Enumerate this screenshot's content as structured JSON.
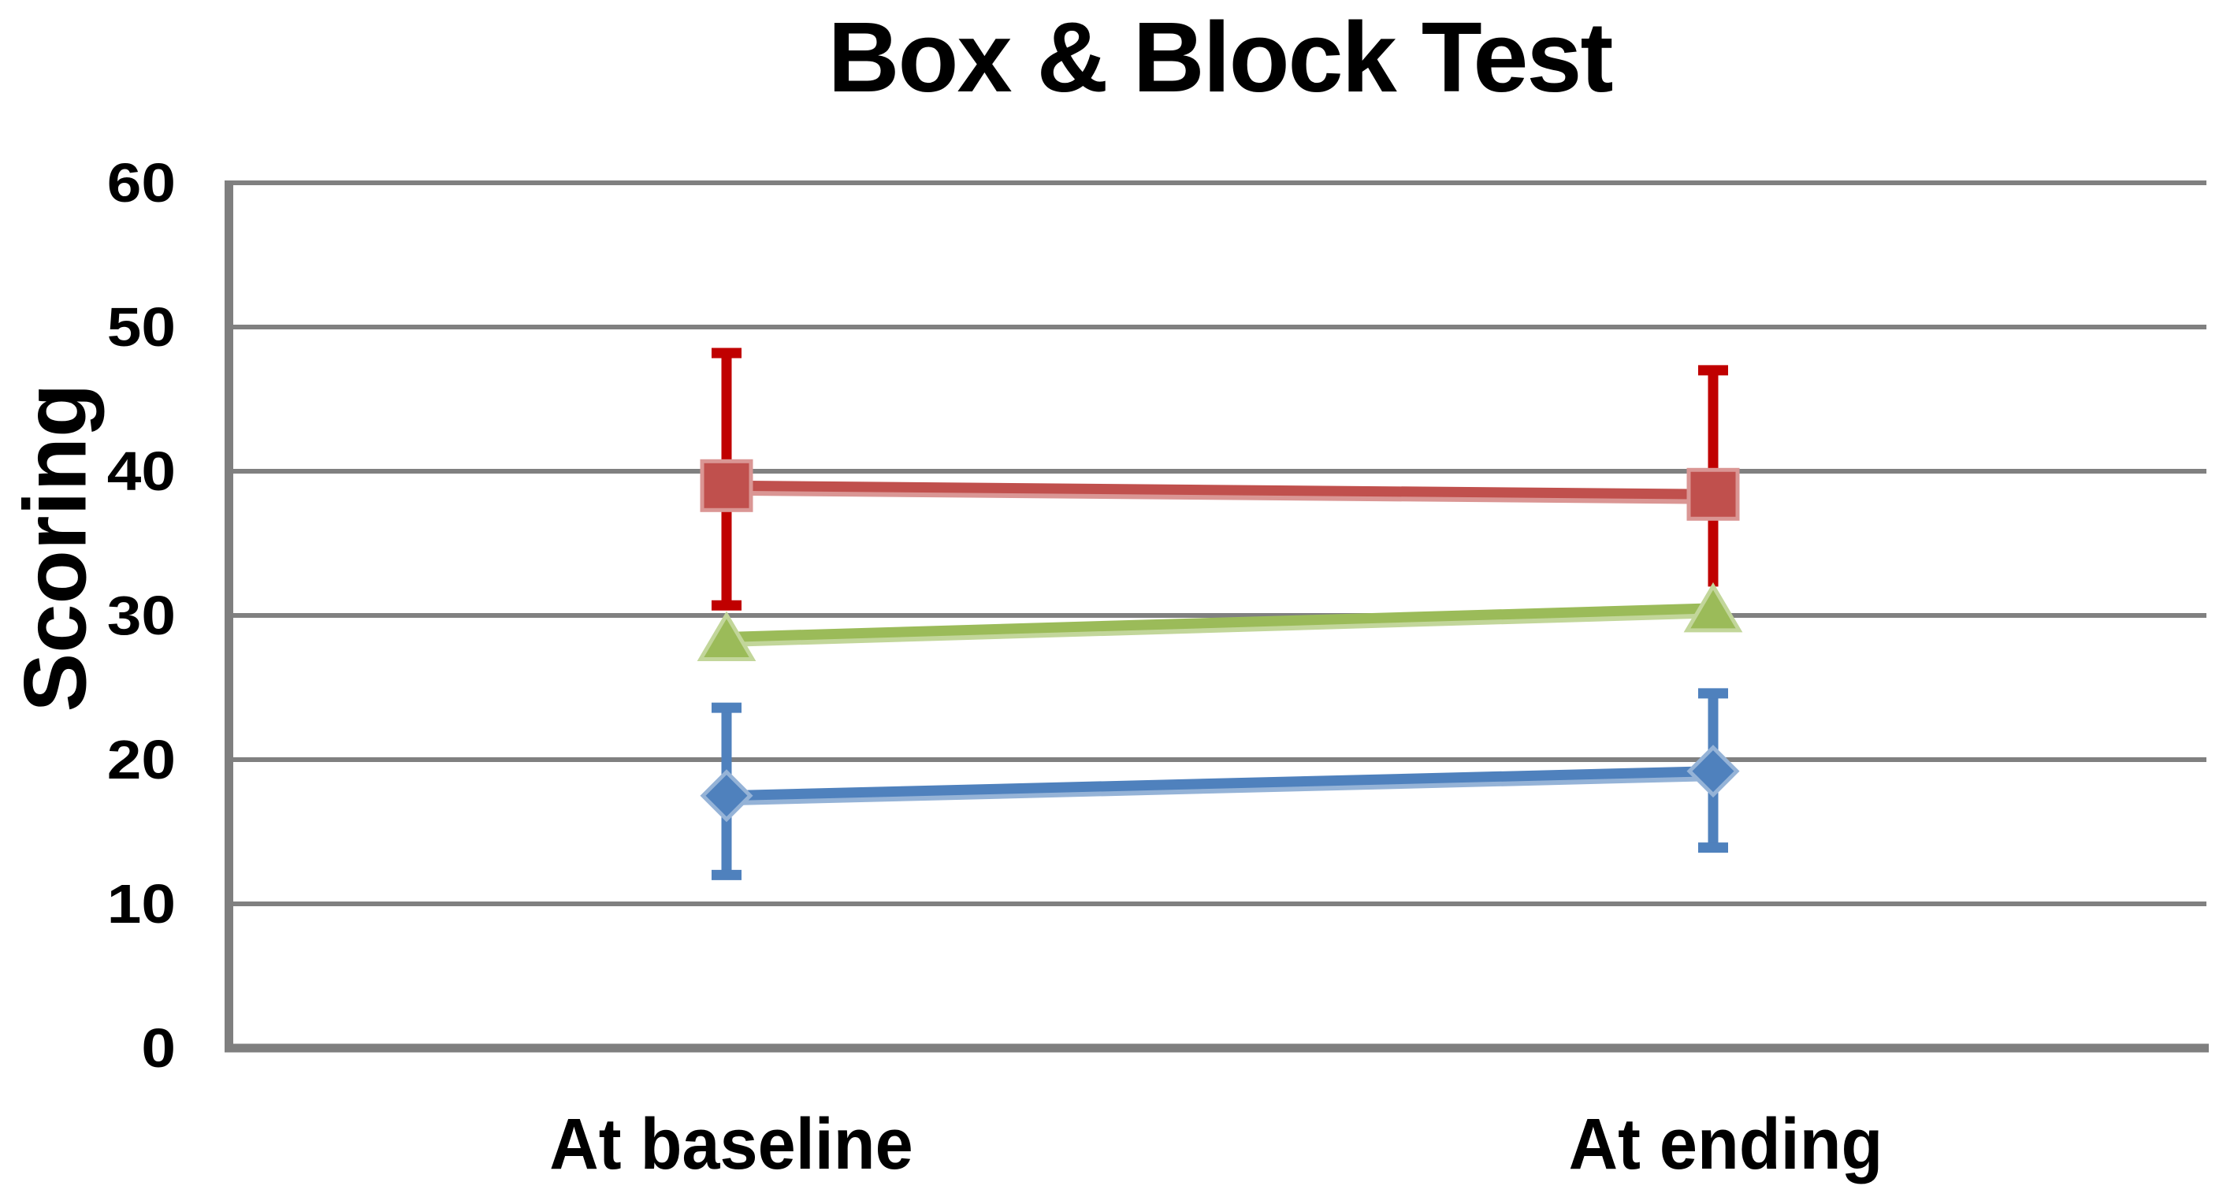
{
  "chart_data": {
    "type": "line",
    "title": "Box & Block Test",
    "ylabel": "Scoring",
    "xlabel": "",
    "ylim": [
      0,
      60
    ],
    "yticks": [
      0,
      10,
      20,
      30,
      40,
      50,
      60
    ],
    "grid": true,
    "legend": "none",
    "background": "#ffffff",
    "gridline_color": "#808080",
    "axis_color": "#7f7f7f",
    "text_color": "#000000",
    "categories": [
      "At baseline",
      "At ending"
    ],
    "series": [
      {
        "name": "red-squares",
        "marker": "square",
        "color": "#C0504D",
        "color_light": "#DA9694",
        "error_color": "#C00000",
        "values": [
          39,
          38.4
        ],
        "error_high": [
          48.2,
          47
        ],
        "error_low": [
          30.7,
          32
        ],
        "error_high_cap_visible": [
          true,
          true
        ],
        "error_low_cap_visible": [
          true,
          false
        ]
      },
      {
        "name": "green-triangles",
        "marker": "triangle",
        "color": "#9BBB59",
        "color_light": "#C2D69A",
        "values": [
          28.5,
          30.5
        ]
      },
      {
        "name": "blue-diamonds",
        "marker": "diamond",
        "color": "#4F81BD",
        "color_light": "#95B3D7",
        "error_color": "#4F81BD",
        "values": [
          17.5,
          19.2
        ],
        "error_high": [
          23.6,
          24.6
        ],
        "error_low": [
          12,
          13.9
        ],
        "error_high_cap_visible": [
          true,
          true
        ],
        "error_low_cap_visible": [
          true,
          true
        ]
      }
    ]
  }
}
